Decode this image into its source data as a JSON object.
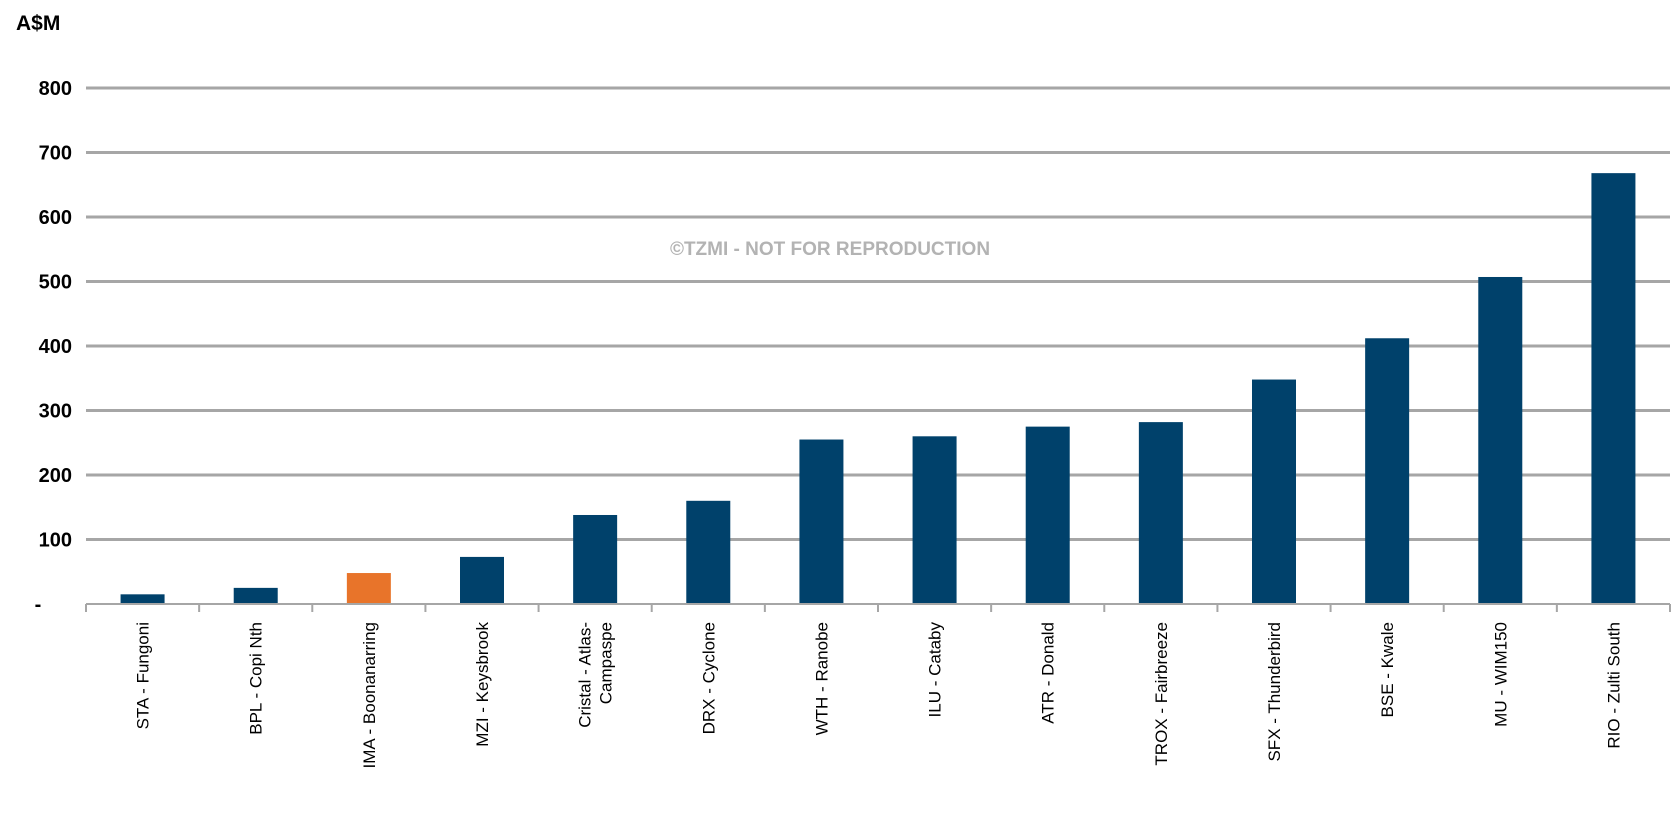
{
  "chart_data": {
    "type": "bar",
    "ylabel": "A$M",
    "ylim": [
      0,
      800
    ],
    "y_ticks": [
      {
        "value": 0,
        "label": "-"
      },
      {
        "value": 100,
        "label": "100"
      },
      {
        "value": 200,
        "label": "200"
      },
      {
        "value": 300,
        "label": "300"
      },
      {
        "value": 400,
        "label": "400"
      },
      {
        "value": 500,
        "label": "500"
      },
      {
        "value": 600,
        "label": "600"
      },
      {
        "value": 700,
        "label": "700"
      },
      {
        "value": 800,
        "label": "800"
      }
    ],
    "grid": true,
    "categories": [
      [
        "STA - Fungoni"
      ],
      [
        "BPL - Copi Nth"
      ],
      [
        "IMA - Boonanarring"
      ],
      [
        "MZI - Keysbrook"
      ],
      [
        "Cristal - Atlas-",
        "Campaspe"
      ],
      [
        "DRX - Cyclone"
      ],
      [
        "WTH - Ranobe"
      ],
      [
        "ILU - Cataby"
      ],
      [
        "ATR - Donald"
      ],
      [
        "TROX - Fairbreeze"
      ],
      [
        "SFX - Thunderbird"
      ],
      [
        "BSE - Kwale"
      ],
      [
        "MU - WIM150"
      ],
      [
        "RIO - Zulti South"
      ]
    ],
    "values": [
      15,
      25,
      48,
      73,
      138,
      160,
      255,
      260,
      275,
      282,
      348,
      412,
      507,
      668
    ],
    "highlight_index": 2,
    "colors": {
      "bar": "#00416b",
      "highlight": "#e8742a",
      "grid": "#a6a6a6",
      "axis": "#a6a6a6",
      "watermark": "#b3b3b3"
    },
    "watermark": "©TZMI - NOT FOR REPRODUCTION"
  }
}
